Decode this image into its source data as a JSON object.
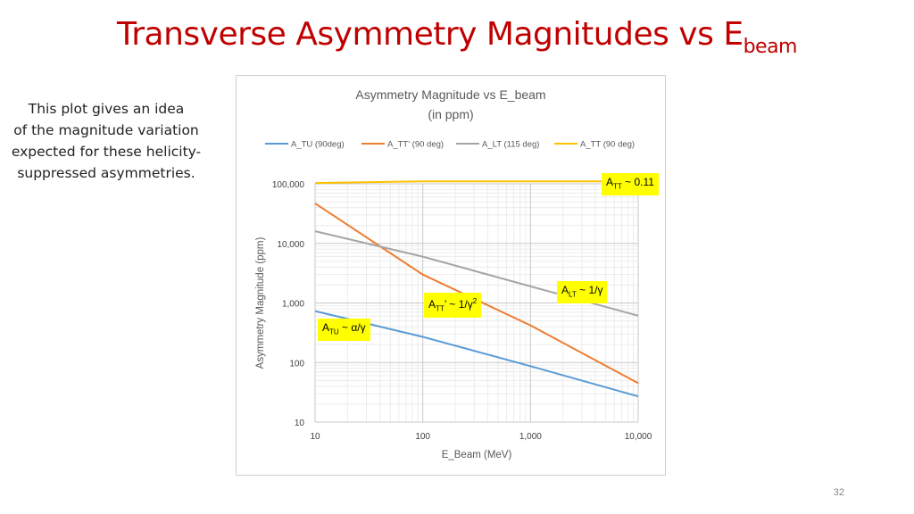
{
  "slide": {
    "title_main": "Transverse Asymmetry Magnitudes vs E",
    "title_sub": "beam",
    "intro_lines": [
      "This plot gives an idea",
      "of the magnitude variation",
      "expected for these helicity-",
      "suppressed asymmetries."
    ],
    "page_number": "32"
  },
  "annotations": {
    "att": {
      "sym": "A",
      "sub": "TT",
      "rest": " ~ 0.11",
      "sup": ""
    },
    "alt": {
      "sym": "A",
      "sub": "LT",
      "rest": " ~ 1/γ",
      "sup": ""
    },
    "attp": {
      "sym": "A",
      "sub": "TT",
      "rest": "’ ~ 1/γ",
      "sup": "2"
    },
    "atu": {
      "sym": "A",
      "sub": "TU",
      "rest": " ~ α/γ",
      "sup": ""
    }
  },
  "chart_data": {
    "type": "line",
    "title": "Asymmetry Magnitude vs E_beam",
    "subtitle": "(in ppm)",
    "xlabel": "E_Beam (MeV)",
    "ylabel": "Asymmetry Magnitude (ppm)",
    "xscale": "log",
    "yscale": "log",
    "xlim": [
      10,
      10000
    ],
    "ylim": [
      10,
      100000
    ],
    "xticks": [
      10,
      100,
      1000,
      10000
    ],
    "xtick_labels": [
      "10",
      "100",
      "1,000",
      "10,000"
    ],
    "yticks": [
      10,
      100,
      1000,
      10000,
      100000
    ],
    "ytick_labels": [
      "10",
      "100",
      "1,000",
      "10,000",
      "100,000"
    ],
    "grid": true,
    "legend_position": "top",
    "series": [
      {
        "name": "A_TU (90deg)",
        "color": "#5b9bd5",
        "x": [
          10,
          100,
          1000,
          10000
        ],
        "y": [
          730,
          270,
          87,
          27
        ]
      },
      {
        "name": "A_TT' (90 deg)",
        "color": "#ed7d31",
        "x": [
          10,
          100,
          1000,
          10000
        ],
        "y": [
          47000,
          3000,
          420,
          45
        ]
      },
      {
        "name": "A_LT (115 deg)",
        "color": "#a5a5a5",
        "x": [
          10,
          100,
          1000,
          10000
        ],
        "y": [
          16000,
          6000,
          1900,
          610
        ]
      },
      {
        "name": "A_TT (90 deg)",
        "color": "#ffc000",
        "x": [
          10,
          100,
          1000,
          10000
        ],
        "y": [
          103000,
          110000,
          110000,
          110000
        ]
      }
    ]
  }
}
